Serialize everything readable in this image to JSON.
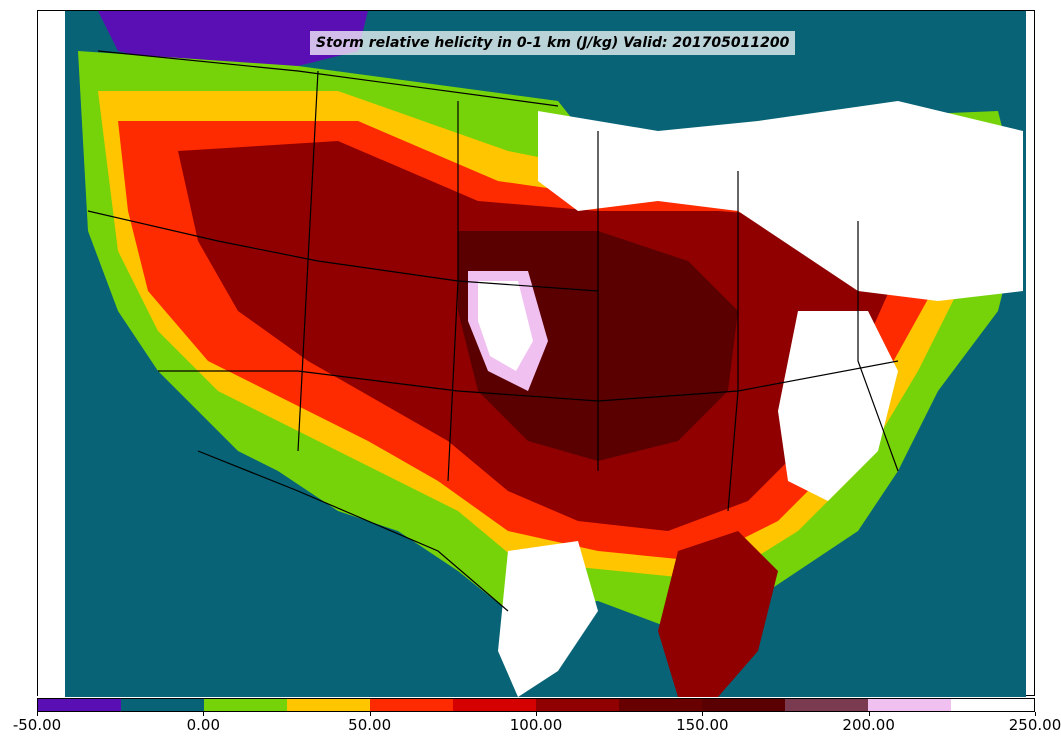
{
  "title": "Storm relative helicity in 0-1 km (J/kg) Valid: 201705011200",
  "colorbar": {
    "colors": [
      "#5a0fb4",
      "#076375",
      "#77d309",
      "#ffc600",
      "#ff2b00",
      "#d50000",
      "#900000",
      "#690000",
      "#5a0000",
      "#7a3a50",
      "#f0c0f0",
      "#ffffff"
    ],
    "tick_labels": [
      "-50.00",
      "0.00",
      "50.00",
      "100.00",
      "150.00",
      "200.00",
      "250.00"
    ]
  },
  "map_colors": {
    "ocean": "#076375",
    "land_low": "#77d309",
    "land_mid": "#ffc600",
    "land_high": "#ff2b00",
    "core": "#900000",
    "core_dark": "#5a0000",
    "max": "#ffffff",
    "purple": "#5a0fb4"
  }
}
